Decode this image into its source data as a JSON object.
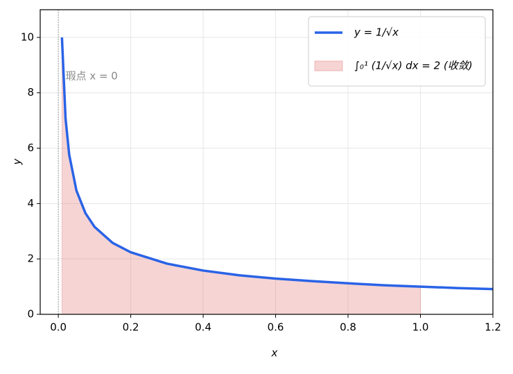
{
  "chart_data": {
    "type": "line",
    "xlabel": "x",
    "ylabel": "y",
    "series": [
      {
        "name": "y = 1/√x",
        "kind": "line",
        "color": "#2a63e6",
        "x": [
          0.01,
          0.02,
          0.03,
          0.05,
          0.075,
          0.1,
          0.15,
          0.2,
          0.3,
          0.4,
          0.5,
          0.6,
          0.7,
          0.8,
          0.9,
          1.0,
          1.1,
          1.2
        ],
        "values": [
          10,
          7.07,
          5.77,
          4.47,
          3.65,
          3.16,
          2.58,
          2.24,
          1.83,
          1.58,
          1.41,
          1.29,
          1.2,
          1.12,
          1.05,
          1.0,
          0.95,
          0.91
        ]
      },
      {
        "name": "∫₀¹ (1/√x) dx = 2 (收敛)",
        "kind": "area",
        "color": "#e06666",
        "x": [
          0.01,
          0.02,
          0.03,
          0.05,
          0.075,
          0.1,
          0.15,
          0.2,
          0.3,
          0.4,
          0.5,
          0.6,
          0.7,
          0.8,
          0.9,
          1.0
        ],
        "values": [
          10,
          7.07,
          5.77,
          4.47,
          3.65,
          3.16,
          2.58,
          2.24,
          1.83,
          1.58,
          1.41,
          1.29,
          1.2,
          1.12,
          1.05,
          1.0
        ]
      }
    ],
    "annotation": {
      "text": "瑕点 x = 0",
      "x": 0.02,
      "y": 8.6
    },
    "vline": 0,
    "xlim": [
      -0.05,
      1.2
    ],
    "ylim": [
      0,
      11
    ],
    "xticks": [
      {
        "value": 0,
        "label": "0.0"
      },
      0.2,
      0.4,
      0.6,
      0.8,
      {
        "value": 1,
        "label": "1.0"
      },
      1.2
    ],
    "yticks": [
      0,
      2,
      4,
      6,
      8,
      10
    ],
    "grid": true,
    "legend": "upper right"
  }
}
